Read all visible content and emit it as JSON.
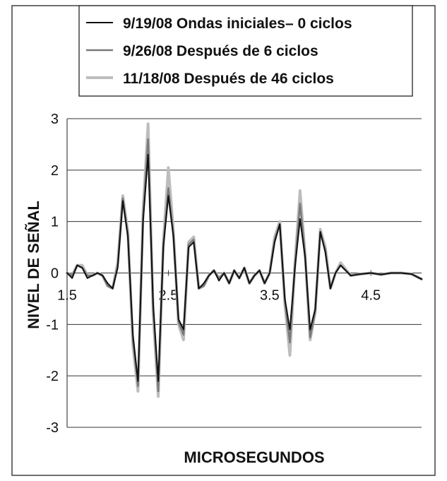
{
  "chart_data": {
    "type": "line",
    "xlabel": "MICROSEGUNDOS",
    "ylabel": "NIVEL DE SEÑAL",
    "xlim": [
      1.5,
      5.0
    ],
    "ylim": [
      -3,
      3
    ],
    "x_ticks": [
      "1.5",
      "2.5",
      "3.5",
      "4.5"
    ],
    "y_ticks": [
      "3",
      "2",
      "1",
      "0",
      "-1",
      "-2",
      "-3"
    ],
    "grid": true,
    "legend_position": "top",
    "series": [
      {
        "name": "9/19/08 Ondas iniciales– 0 ciclos",
        "color": "#111111",
        "x": [
          1.5,
          1.55,
          1.6,
          1.65,
          1.7,
          1.75,
          1.8,
          1.85,
          1.9,
          1.95,
          2.0,
          2.05,
          2.1,
          2.15,
          2.2,
          2.25,
          2.3,
          2.35,
          2.4,
          2.45,
          2.5,
          2.55,
          2.6,
          2.65,
          2.7,
          2.75,
          2.8,
          2.85,
          2.9,
          2.95,
          3.0,
          3.05,
          3.1,
          3.15,
          3.2,
          3.25,
          3.3,
          3.35,
          3.4,
          3.45,
          3.5,
          3.55,
          3.6,
          3.65,
          3.7,
          3.75,
          3.8,
          3.85,
          3.9,
          3.95,
          4.0,
          4.05,
          4.1,
          4.15,
          4.2,
          4.3,
          4.4,
          4.5,
          4.6,
          4.7,
          4.8,
          4.9,
          5.0
        ],
        "y": [
          0.0,
          -0.1,
          0.15,
          0.1,
          -0.1,
          -0.05,
          0.0,
          -0.05,
          -0.2,
          -0.3,
          0.1,
          1.4,
          0.7,
          -1.2,
          -2.1,
          1.0,
          2.3,
          -0.6,
          -2.1,
          0.5,
          1.5,
          0.7,
          -0.9,
          -1.1,
          0.5,
          0.6,
          -0.3,
          -0.2,
          -0.05,
          0.05,
          -0.15,
          0.0,
          -0.2,
          0.05,
          -0.1,
          0.1,
          -0.2,
          -0.05,
          0.05,
          -0.2,
          0.0,
          0.6,
          0.95,
          -0.5,
          -1.1,
          0.1,
          1.05,
          0.3,
          -1.1,
          -0.7,
          0.8,
          0.4,
          -0.3,
          0.0,
          0.15,
          -0.05,
          -0.02,
          0.0,
          -0.03,
          0.0,
          0.0,
          -0.02,
          -0.12
        ]
      },
      {
        "name": "9/26/08 Después de 6 ciclos",
        "color": "#7a7a7a",
        "x": [
          1.5,
          1.55,
          1.6,
          1.65,
          1.7,
          1.75,
          1.8,
          1.85,
          1.9,
          1.95,
          2.0,
          2.05,
          2.1,
          2.15,
          2.2,
          2.25,
          2.3,
          2.35,
          2.4,
          2.45,
          2.5,
          2.55,
          2.6,
          2.65,
          2.7,
          2.75,
          2.8,
          2.85,
          2.9,
          2.95,
          3.0,
          3.05,
          3.1,
          3.15,
          3.2,
          3.25,
          3.3,
          3.35,
          3.4,
          3.45,
          3.5,
          3.55,
          3.6,
          3.65,
          3.7,
          3.75,
          3.8,
          3.85,
          3.9,
          3.95,
          4.0,
          4.05,
          4.1,
          4.15,
          4.2,
          4.3,
          4.4,
          4.5,
          4.6,
          4.7,
          4.8,
          4.9,
          5.0
        ],
        "y": [
          0.0,
          -0.05,
          0.15,
          0.1,
          -0.05,
          -0.05,
          0.0,
          -0.05,
          -0.25,
          -0.3,
          0.15,
          1.45,
          0.75,
          -1.3,
          -2.2,
          1.1,
          2.6,
          -0.7,
          -2.3,
          0.55,
          1.65,
          0.75,
          -0.95,
          -1.2,
          0.55,
          0.65,
          -0.3,
          -0.25,
          -0.05,
          0.05,
          -0.1,
          0.0,
          -0.2,
          0.05,
          -0.1,
          0.1,
          -0.2,
          -0.05,
          0.05,
          -0.2,
          0.0,
          0.65,
          0.95,
          -0.55,
          -1.35,
          0.15,
          1.35,
          0.35,
          -1.25,
          -0.75,
          0.8,
          0.45,
          -0.3,
          0.0,
          0.15,
          -0.05,
          -0.02,
          0.0,
          -0.03,
          0.0,
          0.0,
          -0.02,
          -0.12
        ]
      },
      {
        "name": "11/18/08 Después de 46 ciclos",
        "color": "#bdbdbd",
        "x": [
          1.5,
          1.55,
          1.6,
          1.65,
          1.7,
          1.75,
          1.8,
          1.85,
          1.9,
          1.95,
          2.0,
          2.05,
          2.1,
          2.15,
          2.2,
          2.25,
          2.3,
          2.35,
          2.4,
          2.45,
          2.5,
          2.55,
          2.6,
          2.65,
          2.7,
          2.75,
          2.8,
          2.85,
          2.9,
          2.95,
          3.0,
          3.05,
          3.1,
          3.15,
          3.2,
          3.25,
          3.3,
          3.35,
          3.4,
          3.45,
          3.5,
          3.55,
          3.6,
          3.65,
          3.7,
          3.75,
          3.8,
          3.85,
          3.9,
          3.95,
          4.0,
          4.05,
          4.1,
          4.15,
          4.2,
          4.3,
          4.4,
          4.5,
          4.6,
          4.7,
          4.8,
          4.9,
          5.0
        ],
        "y": [
          0.0,
          -0.05,
          0.15,
          0.15,
          -0.05,
          -0.05,
          0.0,
          -0.05,
          -0.25,
          -0.3,
          0.2,
          1.5,
          0.8,
          -1.4,
          -2.3,
          1.2,
          2.9,
          -0.8,
          -2.4,
          0.6,
          2.05,
          0.8,
          -1.0,
          -1.3,
          0.6,
          0.7,
          -0.3,
          -0.25,
          -0.05,
          0.05,
          -0.1,
          0.0,
          -0.2,
          0.05,
          -0.1,
          0.1,
          -0.2,
          -0.05,
          0.05,
          -0.2,
          0.0,
          0.7,
          1.0,
          -0.6,
          -1.6,
          0.2,
          1.6,
          0.35,
          -1.3,
          -0.75,
          0.85,
          0.5,
          -0.3,
          0.0,
          0.2,
          -0.05,
          -0.02,
          0.0,
          -0.03,
          0.0,
          0.0,
          -0.02,
          -0.12
        ]
      }
    ]
  }
}
